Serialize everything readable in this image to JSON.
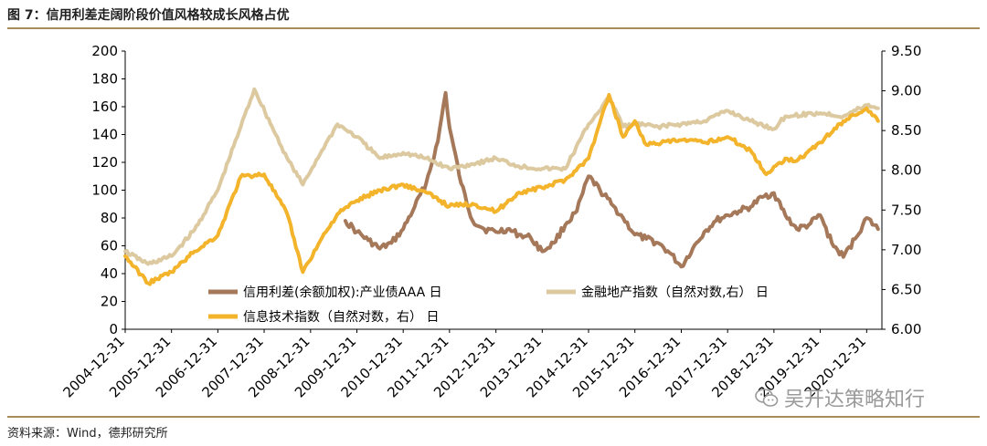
{
  "figure": {
    "title": "图 7：信用利差走阔阶段价值风格较成长风格占优",
    "source": "资料来源：Wind，德邦研究所",
    "watermark": "吴开达策略知行",
    "watermark_icon": "wechat-icon"
  },
  "colors": {
    "credit": "#a5785a",
    "finance": "#dcc9a0",
    "it": "#f3b42c",
    "rule": "#a98a5a"
  },
  "chart_data": {
    "type": "line",
    "x_type": "date",
    "x_ticks": [
      "2004-12-31",
      "2005-12-31",
      "2006-12-31",
      "2007-12-31",
      "2008-12-31",
      "2009-12-31",
      "2010-12-31",
      "2011-12-31",
      "2012-12-31",
      "2013-12-31",
      "2014-12-31",
      "2015-12-31",
      "2016-12-31",
      "2017-12-31",
      "2018-12-31",
      "2019-12-31",
      "2020-12-31"
    ],
    "y_left": {
      "ticks": [
        "0",
        "20",
        "40",
        "60",
        "80",
        "100",
        "120",
        "140",
        "160",
        "180",
        "200"
      ],
      "ylim": [
        0,
        200
      ]
    },
    "y_right": {
      "ticks": [
        "6.00",
        "6.50",
        "7.00",
        "7.50",
        "8.00",
        "8.50",
        "9.00",
        "9.50"
      ],
      "ylim": [
        6.0,
        9.5
      ]
    },
    "grid": false,
    "legend_position": "inside-bottom",
    "series": [
      {
        "name": "信用利差(余额加权):产业债AAA 日",
        "axis": "left",
        "color": "#a5785a",
        "points": [
          [
            "2009-10-01",
            78
          ],
          [
            "2009-12-31",
            70
          ],
          [
            "2010-03-31",
            64
          ],
          [
            "2010-06-30",
            58
          ],
          [
            "2010-09-30",
            62
          ],
          [
            "2010-12-31",
            72
          ],
          [
            "2011-03-31",
            88
          ],
          [
            "2011-06-30",
            105
          ],
          [
            "2011-09-30",
            135
          ],
          [
            "2011-11-30",
            170
          ],
          [
            "2011-12-31",
            145
          ],
          [
            "2012-03-31",
            105
          ],
          [
            "2012-06-30",
            78
          ],
          [
            "2012-09-30",
            72
          ],
          [
            "2012-12-31",
            70
          ],
          [
            "2013-03-31",
            72
          ],
          [
            "2013-06-30",
            68
          ],
          [
            "2013-09-30",
            66
          ],
          [
            "2013-12-31",
            56
          ],
          [
            "2014-03-31",
            62
          ],
          [
            "2014-06-30",
            75
          ],
          [
            "2014-09-30",
            85
          ],
          [
            "2014-12-31",
            110
          ],
          [
            "2015-03-31",
            100
          ],
          [
            "2015-06-30",
            90
          ],
          [
            "2015-09-30",
            80
          ],
          [
            "2015-12-31",
            68
          ],
          [
            "2016-03-31",
            65
          ],
          [
            "2016-06-30",
            62
          ],
          [
            "2016-09-30",
            55
          ],
          [
            "2016-12-31",
            45
          ],
          [
            "2017-03-31",
            58
          ],
          [
            "2017-06-30",
            70
          ],
          [
            "2017-09-30",
            78
          ],
          [
            "2017-12-31",
            82
          ],
          [
            "2018-03-31",
            85
          ],
          [
            "2018-06-30",
            88
          ],
          [
            "2018-09-30",
            95
          ],
          [
            "2018-12-31",
            98
          ],
          [
            "2019-03-31",
            82
          ],
          [
            "2019-06-30",
            72
          ],
          [
            "2019-09-30",
            75
          ],
          [
            "2019-12-31",
            82
          ],
          [
            "2020-03-31",
            62
          ],
          [
            "2020-06-30",
            52
          ],
          [
            "2020-09-30",
            65
          ],
          [
            "2020-12-31",
            80
          ],
          [
            "2021-03-31",
            72
          ]
        ]
      },
      {
        "name": "金融地产指数（自然对数,右） 日",
        "axis": "right",
        "color": "#dcc9a0",
        "points": [
          [
            "2004-12-31",
            6.98
          ],
          [
            "2005-06-30",
            6.82
          ],
          [
            "2005-12-31",
            6.92
          ],
          [
            "2006-06-30",
            7.25
          ],
          [
            "2006-12-31",
            7.75
          ],
          [
            "2007-06-30",
            8.55
          ],
          [
            "2007-10-15",
            9.02
          ],
          [
            "2008-03-31",
            8.45
          ],
          [
            "2008-06-30",
            8.15
          ],
          [
            "2008-10-31",
            7.82
          ],
          [
            "2009-03-31",
            8.25
          ],
          [
            "2009-07-31",
            8.58
          ],
          [
            "2009-12-31",
            8.42
          ],
          [
            "2010-06-30",
            8.15
          ],
          [
            "2010-12-31",
            8.22
          ],
          [
            "2011-06-30",
            8.15
          ],
          [
            "2011-12-31",
            8.02
          ],
          [
            "2012-06-30",
            8.08
          ],
          [
            "2012-12-31",
            8.15
          ],
          [
            "2013-06-30",
            8.05
          ],
          [
            "2013-12-31",
            8.02
          ],
          [
            "2014-06-30",
            8.02
          ],
          [
            "2014-12-31",
            8.58
          ],
          [
            "2015-06-15",
            8.92
          ],
          [
            "2015-09-30",
            8.55
          ],
          [
            "2015-12-31",
            8.58
          ],
          [
            "2016-06-30",
            8.55
          ],
          [
            "2016-12-31",
            8.58
          ],
          [
            "2017-06-30",
            8.62
          ],
          [
            "2017-12-31",
            8.75
          ],
          [
            "2018-06-30",
            8.62
          ],
          [
            "2018-12-31",
            8.52
          ],
          [
            "2019-03-31",
            8.68
          ],
          [
            "2019-12-31",
            8.72
          ],
          [
            "2020-06-30",
            8.68
          ],
          [
            "2020-12-31",
            8.82
          ],
          [
            "2021-03-31",
            8.78
          ]
        ]
      },
      {
        "name": "信息技术指数（自然对数，右） 日",
        "axis": "right",
        "color": "#f3b42c",
        "points": [
          [
            "2004-12-31",
            6.92
          ],
          [
            "2005-06-30",
            6.58
          ],
          [
            "2005-12-31",
            6.72
          ],
          [
            "2006-06-30",
            6.98
          ],
          [
            "2006-12-31",
            7.18
          ],
          [
            "2007-06-30",
            7.92
          ],
          [
            "2007-12-31",
            7.95
          ],
          [
            "2008-06-30",
            7.45
          ],
          [
            "2008-10-31",
            6.72
          ],
          [
            "2009-03-31",
            7.15
          ],
          [
            "2009-07-31",
            7.45
          ],
          [
            "2009-12-31",
            7.62
          ],
          [
            "2010-06-30",
            7.75
          ],
          [
            "2010-12-31",
            7.82
          ],
          [
            "2011-06-30",
            7.72
          ],
          [
            "2011-12-31",
            7.55
          ],
          [
            "2012-06-30",
            7.58
          ],
          [
            "2012-12-31",
            7.48
          ],
          [
            "2013-06-30",
            7.72
          ],
          [
            "2013-12-31",
            7.78
          ],
          [
            "2014-06-30",
            7.88
          ],
          [
            "2014-12-31",
            8.15
          ],
          [
            "2015-06-10",
            8.95
          ],
          [
            "2015-09-30",
            8.42
          ],
          [
            "2015-12-31",
            8.62
          ],
          [
            "2016-03-31",
            8.32
          ],
          [
            "2016-12-31",
            8.38
          ],
          [
            "2017-06-30",
            8.35
          ],
          [
            "2017-12-31",
            8.42
          ],
          [
            "2018-06-30",
            8.25
          ],
          [
            "2018-10-31",
            7.95
          ],
          [
            "2019-03-31",
            8.15
          ],
          [
            "2019-06-30",
            8.12
          ],
          [
            "2019-12-31",
            8.35
          ],
          [
            "2020-06-30",
            8.62
          ],
          [
            "2020-12-31",
            8.78
          ],
          [
            "2021-03-31",
            8.62
          ]
        ]
      }
    ]
  }
}
